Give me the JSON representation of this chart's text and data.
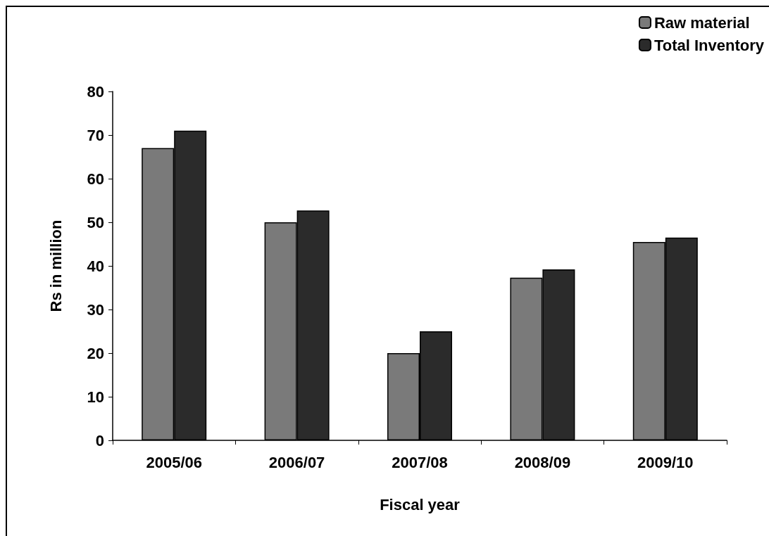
{
  "chart_data": {
    "type": "bar",
    "xlabel": "Fiscal year",
    "ylabel": "Rs in million",
    "categories": [
      "2005/06",
      "2006/07",
      "2007/08",
      "2008/09",
      "2009/10"
    ],
    "series": [
      {
        "name": "Raw material",
        "color": "#7a7a7a",
        "values": [
          67,
          50,
          20,
          37.3,
          45.5
        ]
      },
      {
        "name": "Total Inventory",
        "color": "#2b2b2b",
        "values": [
          71,
          52.7,
          25,
          39.2,
          46.5
        ]
      }
    ],
    "ylim": [
      0,
      80
    ],
    "yticks": [
      0,
      10,
      20,
      30,
      40,
      50,
      60,
      70,
      80
    ],
    "grid": false,
    "legend": "top right"
  }
}
